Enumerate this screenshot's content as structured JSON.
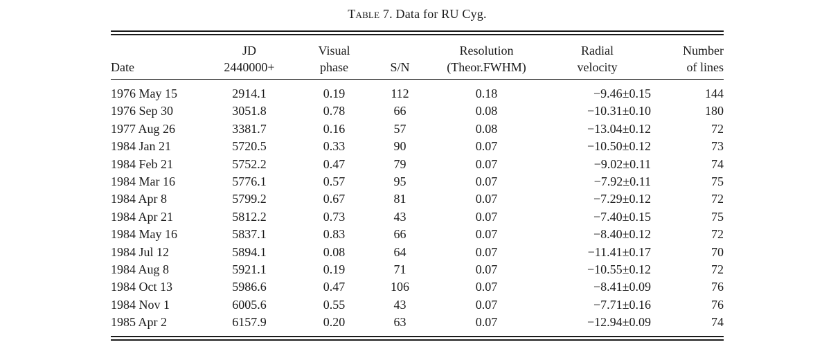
{
  "caption": {
    "label": "Table",
    "number": "7.",
    "title": "Data for RU Cyg."
  },
  "columns": [
    {
      "key": "date",
      "lines": [
        "Date"
      ]
    },
    {
      "key": "jd",
      "lines": [
        "JD",
        "2440000+"
      ]
    },
    {
      "key": "phase",
      "lines": [
        "Visual",
        "phase"
      ]
    },
    {
      "key": "sn",
      "lines": [
        "S/N"
      ]
    },
    {
      "key": "res",
      "lines": [
        "Resolution",
        "(Theor.FWHM)"
      ]
    },
    {
      "key": "rv",
      "lines": [
        "Radial",
        "velocity"
      ]
    },
    {
      "key": "lines",
      "lines": [
        "Number",
        "of lines"
      ]
    }
  ],
  "rows": [
    {
      "date": "1976 May 15",
      "jd": "2914.1",
      "phase": "0.19",
      "sn": "112",
      "res": "0.18",
      "rv": "−9.46±0.15",
      "lines": "144"
    },
    {
      "date": "1976 Sep 30",
      "jd": "3051.8",
      "phase": "0.78",
      "sn": "66",
      "res": "0.08",
      "rv": "−10.31±0.10",
      "lines": "180"
    },
    {
      "date": "1977 Aug 26",
      "jd": "3381.7",
      "phase": "0.16",
      "sn": "57",
      "res": "0.08",
      "rv": "−13.04±0.12",
      "lines": "72"
    },
    {
      "date": "1984 Jan 21",
      "jd": "5720.5",
      "phase": "0.33",
      "sn": "90",
      "res": "0.07",
      "rv": "−10.50±0.12",
      "lines": "73"
    },
    {
      "date": "1984 Feb 21",
      "jd": "5752.2",
      "phase": "0.47",
      "sn": "79",
      "res": "0.07",
      "rv": "−9.02±0.11",
      "lines": "74"
    },
    {
      "date": "1984 Mar 16",
      "jd": "5776.1",
      "phase": "0.57",
      "sn": "95",
      "res": "0.07",
      "rv": "−7.92±0.11",
      "lines": "75"
    },
    {
      "date": "1984 Apr 8",
      "jd": "5799.2",
      "phase": "0.67",
      "sn": "81",
      "res": "0.07",
      "rv": "−7.29±0.12",
      "lines": "72"
    },
    {
      "date": "1984 Apr 21",
      "jd": "5812.2",
      "phase": "0.73",
      "sn": "43",
      "res": "0.07",
      "rv": "−7.40±0.15",
      "lines": "75"
    },
    {
      "date": "1984 May 16",
      "jd": "5837.1",
      "phase": "0.83",
      "sn": "66",
      "res": "0.07",
      "rv": "−8.40±0.12",
      "lines": "72"
    },
    {
      "date": "1984 Jul 12",
      "jd": "5894.1",
      "phase": "0.08",
      "sn": "64",
      "res": "0.07",
      "rv": "−11.41±0.17",
      "lines": "70"
    },
    {
      "date": "1984 Aug 8",
      "jd": "5921.1",
      "phase": "0.19",
      "sn": "71",
      "res": "0.07",
      "rv": "−10.55±0.12",
      "lines": "72"
    },
    {
      "date": "1984 Oct 13",
      "jd": "5986.6",
      "phase": "0.47",
      "sn": "106",
      "res": "0.07",
      "rv": "−8.41±0.09",
      "lines": "76"
    },
    {
      "date": "1984 Nov 1",
      "jd": "6005.6",
      "phase": "0.55",
      "sn": "43",
      "res": "0.07",
      "rv": "−7.71±0.16",
      "lines": "76"
    },
    {
      "date": "1985 Apr 2",
      "jd": "6157.9",
      "phase": "0.20",
      "sn": "63",
      "res": "0.07",
      "rv": "−12.94±0.09",
      "lines": "74"
    }
  ]
}
